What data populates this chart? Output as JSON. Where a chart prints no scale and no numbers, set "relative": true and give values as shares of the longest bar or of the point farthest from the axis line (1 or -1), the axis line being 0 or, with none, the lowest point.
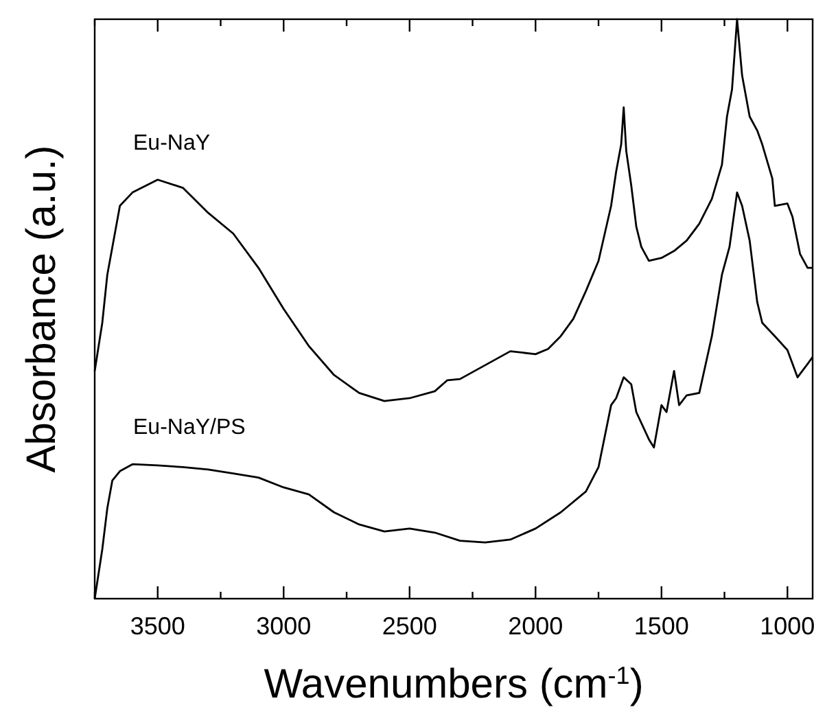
{
  "chart_data": {
    "type": "line",
    "xlabel": "Wavenumbers (cm$^{-1}$)",
    "ylabel": "Absorbance (a.u.)",
    "relative": true,
    "xlim": [
      3750,
      900
    ],
    "xticks": [
      {
        "value": 3750,
        "label": null
      },
      3500,
      {
        "value": 3250,
        "label": null
      },
      3000,
      {
        "value": 2750,
        "label": null
      },
      2500,
      {
        "value": 2250,
        "label": null
      },
      2000,
      {
        "value": 1750,
        "label": null
      },
      1500,
      {
        "value": 1250,
        "label": null
      },
      1000
    ],
    "legend": false,
    "grid": false,
    "marker": "none",
    "line_style": "solid",
    "series": [
      {
        "name": "Eu-NaY",
        "color": "#000000",
        "x": [
          3750,
          3720,
          3700,
          3650,
          3600,
          3500,
          3400,
          3300,
          3200,
          3100,
          3000,
          2900,
          2800,
          2700,
          2600,
          2500,
          2400,
          2350,
          2300,
          2200,
          2100,
          2000,
          1950,
          1900,
          1850,
          1800,
          1750,
          1700,
          1680,
          1660,
          1650,
          1640,
          1620,
          1600,
          1580,
          1550,
          1500,
          1450,
          1400,
          1350,
          1300,
          1260,
          1240,
          1220,
          1200,
          1180,
          1150,
          1120,
          1100,
          1060,
          1050,
          1000,
          980,
          950,
          920,
          900
        ],
        "values": [
          0.393,
          0.476,
          0.559,
          0.678,
          0.701,
          0.723,
          0.709,
          0.666,
          0.63,
          0.571,
          0.5,
          0.436,
          0.386,
          0.355,
          0.341,
          0.346,
          0.358,
          0.377,
          0.379,
          0.403,
          0.427,
          0.422,
          0.431,
          0.453,
          0.483,
          0.531,
          0.583,
          0.678,
          0.737,
          0.784,
          0.848,
          0.773,
          0.713,
          0.642,
          0.607,
          0.583,
          0.588,
          0.6,
          0.618,
          0.647,
          0.69,
          0.749,
          0.832,
          0.879,
          1,
          0.903,
          0.832,
          0.808,
          0.784,
          0.725,
          0.678,
          0.682,
          0.659,
          0.595,
          0.571,
          0.571
        ]
      },
      {
        "name": "Eu-NaY/PS",
        "color": "#000000",
        "x": [
          3750,
          3720,
          3700,
          3680,
          3650,
          3600,
          3500,
          3400,
          3300,
          3200,
          3100,
          3000,
          2900,
          2800,
          2700,
          2600,
          2500,
          2400,
          2300,
          2200,
          2100,
          2000,
          1900,
          1800,
          1750,
          1700,
          1680,
          1650,
          1620,
          1600,
          1550,
          1530,
          1500,
          1480,
          1450,
          1430,
          1400,
          1350,
          1300,
          1260,
          1230,
          1200,
          1180,
          1150,
          1120,
          1100,
          1050,
          1000,
          960,
          920,
          900
        ],
        "values": [
          0,
          0.085,
          0.156,
          0.204,
          0.22,
          0.232,
          0.23,
          0.227,
          0.223,
          0.216,
          0.209,
          0.192,
          0.18,
          0.149,
          0.128,
          0.116,
          0.121,
          0.114,
          0.1,
          0.097,
          0.102,
          0.121,
          0.149,
          0.185,
          0.227,
          0.334,
          0.346,
          0.382,
          0.37,
          0.322,
          0.275,
          0.261,
          0.334,
          0.322,
          0.393,
          0.334,
          0.351,
          0.355,
          0.453,
          0.559,
          0.607,
          0.701,
          0.678,
          0.618,
          0.512,
          0.476,
          0.453,
          0.429,
          0.382,
          0.405,
          0.417
        ]
      }
    ]
  }
}
